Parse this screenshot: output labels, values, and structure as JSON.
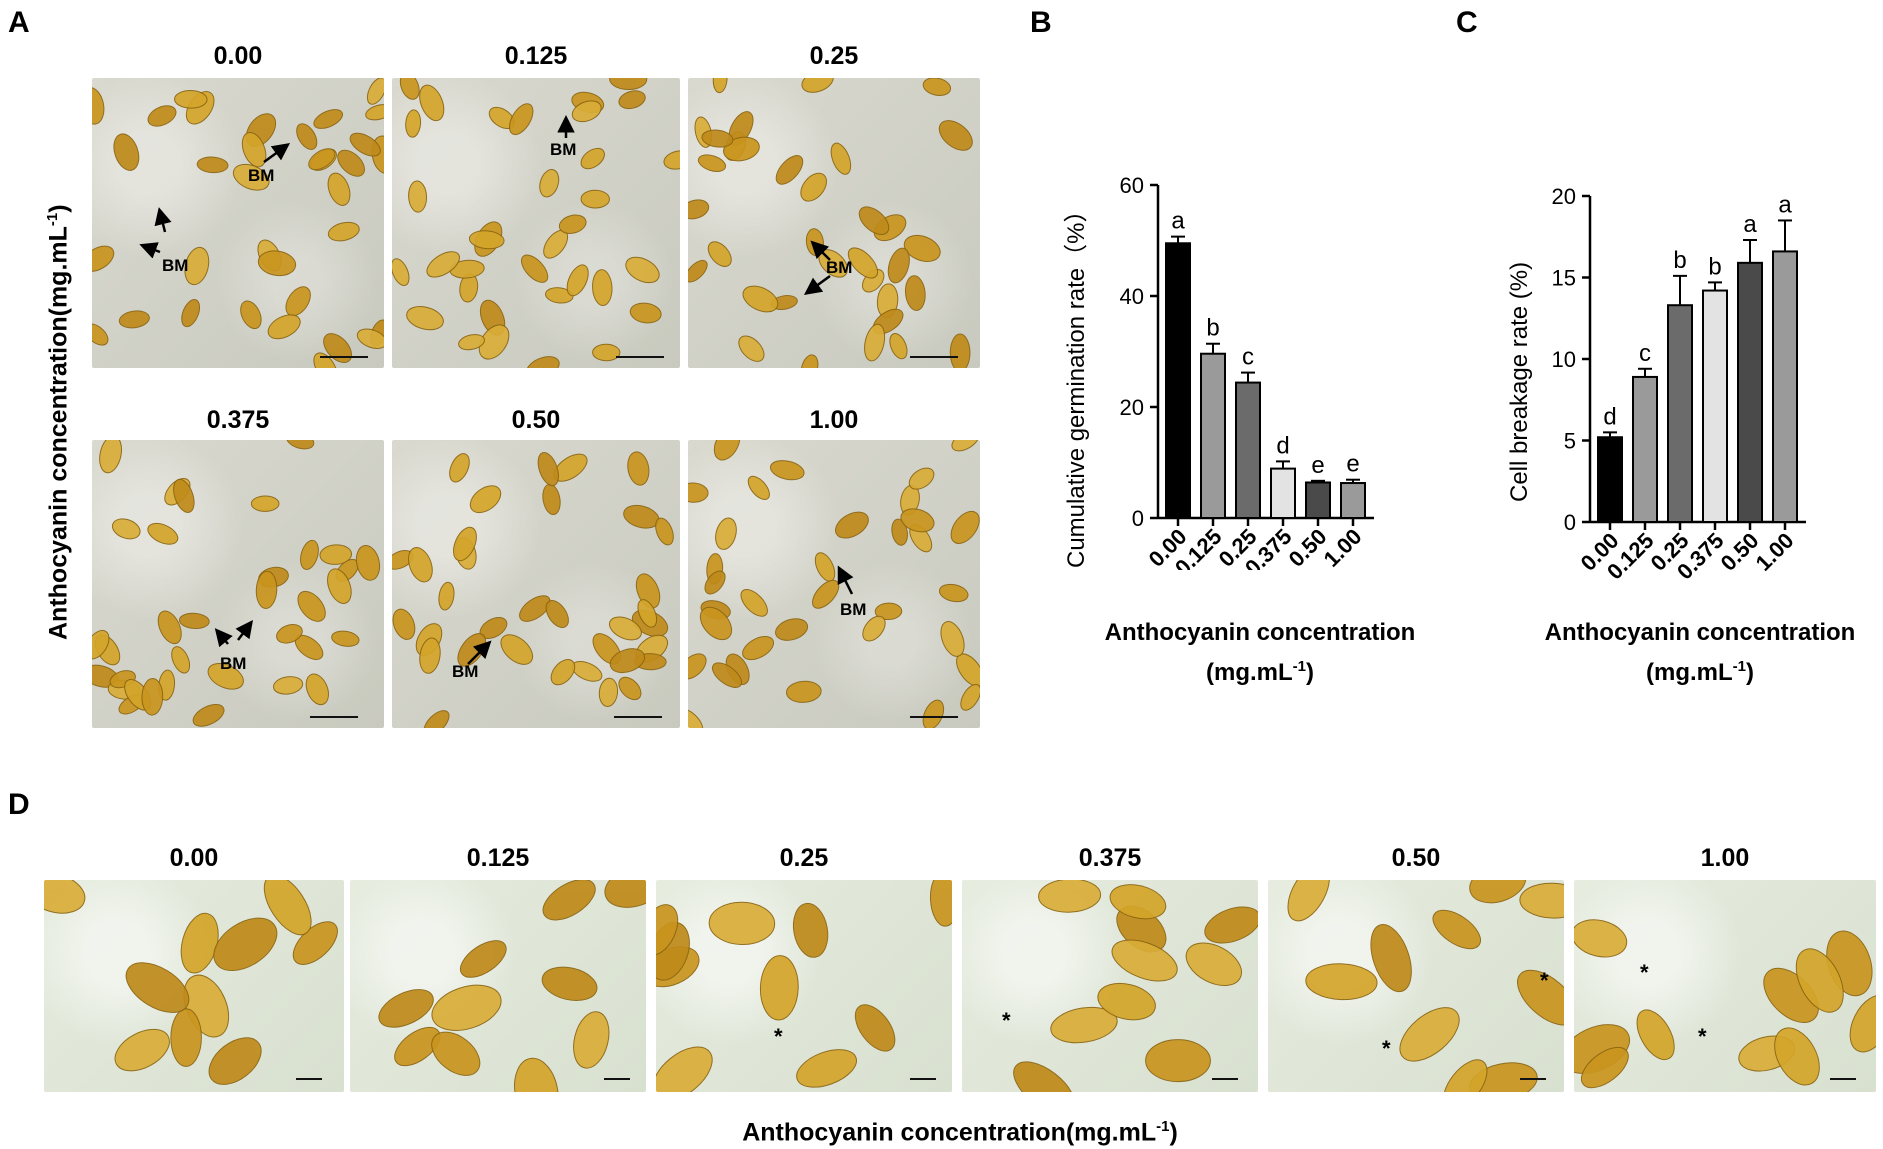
{
  "panels": {
    "A": "A",
    "B": "B",
    "C": "C",
    "D": "D"
  },
  "panel_a": {
    "ylabel_main": "Anthocyanin concentration(mg.mL",
    "ylabel_sup": "-1",
    "ylabel_end": ")",
    "concentrations": [
      "0.00",
      "0.125",
      "0.25",
      "0.375",
      "0.50",
      "1.00"
    ],
    "bm_label": "BM"
  },
  "panel_d": {
    "concentrations": [
      "0.00",
      "0.125",
      "0.25",
      "0.375",
      "0.50",
      "1.00"
    ],
    "star": "*",
    "xlabel_main": "Anthocyanin concentration(mg.mL",
    "xlabel_sup": "-1",
    "xlabel_end": ")"
  },
  "chart_data": [
    {
      "type": "bar",
      "panel": "B",
      "categories": [
        "0.00",
        "0.125",
        "0.25",
        "0.375",
        "0.50",
        "1.00"
      ],
      "values": [
        49.5,
        29.6,
        24.4,
        8.9,
        6.4,
        6.3
      ],
      "errors": [
        1.2,
        1.8,
        1.8,
        1.3,
        0.3,
        0.6
      ],
      "significance": [
        "a",
        "b",
        "c",
        "d",
        "e",
        "e"
      ],
      "bar_colors": [
        "#000000",
        "#9a9a9a",
        "#6b6b6b",
        "#e3e3e3",
        "#4a4a4a",
        "#9a9a9a"
      ],
      "ylabel": "Cumulative germination rate（%）",
      "xlabel_main": "Anthocyanin concentration",
      "xlabel_unit": "(mg.mL",
      "xlabel_sup": "-1",
      "xlabel_end": ")",
      "ylim": [
        0,
        60
      ],
      "yticks": [
        0,
        20,
        40,
        60
      ],
      "grid": false
    },
    {
      "type": "bar",
      "panel": "C",
      "categories": [
        "0.00",
        "0.125",
        "0.25",
        "0.375",
        "0.50",
        "1.00"
      ],
      "values": [
        5.2,
        8.9,
        13.3,
        14.2,
        15.9,
        16.6
      ],
      "errors": [
        0.3,
        0.5,
        1.8,
        0.5,
        1.4,
        1.9
      ],
      "significance": [
        "d",
        "c",
        "b",
        "b",
        "a",
        "a"
      ],
      "bar_colors": [
        "#000000",
        "#9a9a9a",
        "#6b6b6b",
        "#e3e3e3",
        "#4a4a4a",
        "#9a9a9a"
      ],
      "ylabel": "Cell breakage rate (%)",
      "xlabel_main": "Anthocyanin concentration",
      "xlabel_unit": "(mg.mL",
      "xlabel_sup": "-1",
      "xlabel_end": ")",
      "ylim": [
        0,
        20
      ],
      "yticks": [
        0,
        5,
        10,
        15,
        20
      ],
      "grid": false
    }
  ]
}
